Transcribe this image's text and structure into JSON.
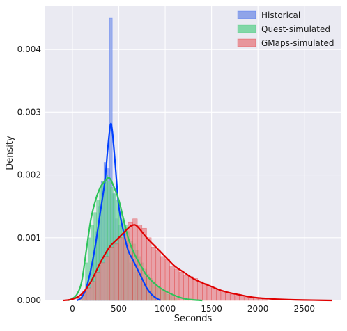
{
  "chart_data": {
    "type": "bar",
    "title": "",
    "xlabel": "Seconds",
    "ylabel": "Density",
    "xlim": [
      -300,
      2900
    ],
    "ylim": [
      0,
      0.0047
    ],
    "x_ticks": [
      "0",
      "500",
      "1000",
      "1500",
      "2000",
      "2500"
    ],
    "x_tick_values": [
      0,
      500,
      1000,
      1500,
      2000,
      2500
    ],
    "y_ticks": [
      "0.000",
      "0.001",
      "0.002",
      "0.003",
      "0.004"
    ],
    "y_tick_values": [
      0,
      0.001,
      0.002,
      0.003,
      0.004
    ],
    "grid": true,
    "legend_position": "top-right",
    "background": "#eaeaf2",
    "series": [
      {
        "name": "Historical",
        "kind": "histogram+kde",
        "color": "#0040ff",
        "fill": "#7f98e8",
        "bins": [
          [
            100,
            130,
            3e-05
          ],
          [
            130,
            160,
            0.0001
          ],
          [
            160,
            190,
            0.0003
          ],
          [
            190,
            220,
            0.00055
          ],
          [
            220,
            250,
            0.0008
          ],
          [
            250,
            280,
            0.0011
          ],
          [
            280,
            310,
            0.0015
          ],
          [
            310,
            340,
            0.0019
          ],
          [
            340,
            370,
            0.0022
          ],
          [
            370,
            400,
            0.0021
          ],
          [
            400,
            430,
            0.0045
          ],
          [
            430,
            460,
            0.0017
          ],
          [
            460,
            490,
            0.0013
          ],
          [
            490,
            520,
            0.0012
          ],
          [
            520,
            550,
            0.001
          ],
          [
            550,
            580,
            0.0009
          ],
          [
            580,
            610,
            0.0008
          ],
          [
            610,
            640,
            0.0006
          ],
          [
            640,
            670,
            0.0005
          ],
          [
            670,
            700,
            0.00045
          ],
          [
            700,
            730,
            0.0004
          ],
          [
            730,
            760,
            0.0003
          ],
          [
            760,
            790,
            0.00025
          ],
          [
            790,
            820,
            0.0002
          ],
          [
            820,
            850,
            0.00015
          ],
          [
            850,
            880,
            0.0001
          ],
          [
            880,
            910,
            5e-05
          ]
        ],
        "kde": [
          [
            50,
            0.0
          ],
          [
            100,
            5e-05
          ],
          [
            150,
            0.0002
          ],
          [
            200,
            0.0005
          ],
          [
            250,
            0.0009
          ],
          [
            300,
            0.0014
          ],
          [
            350,
            0.0019
          ],
          [
            380,
            0.0024
          ],
          [
            410,
            0.0028
          ],
          [
            430,
            0.0027
          ],
          [
            460,
            0.0022
          ],
          [
            500,
            0.0015
          ],
          [
            550,
            0.0011
          ],
          [
            600,
            0.0008
          ],
          [
            650,
            0.00065
          ],
          [
            700,
            0.0005
          ],
          [
            750,
            0.00035
          ],
          [
            800,
            0.0002
          ],
          [
            850,
            0.0001
          ],
          [
            900,
            4e-05
          ],
          [
            950,
            0.0
          ]
        ]
      },
      {
        "name": "Quest-simulated",
        "kind": "histogram+kde",
        "color": "#2ec45a",
        "fill": "#6fd49a",
        "bins": [
          [
            80,
            110,
            5e-05
          ],
          [
            110,
            140,
            0.00015
          ],
          [
            140,
            170,
            0.0006
          ],
          [
            170,
            200,
            0.001
          ],
          [
            200,
            230,
            0.0012
          ],
          [
            230,
            260,
            0.0014
          ],
          [
            260,
            290,
            0.0016
          ],
          [
            290,
            320,
            0.0018
          ],
          [
            320,
            350,
            0.0019
          ],
          [
            350,
            380,
            0.002
          ],
          [
            380,
            410,
            0.0019
          ],
          [
            410,
            440,
            0.0018
          ],
          [
            440,
            470,
            0.0017
          ],
          [
            470,
            500,
            0.0016
          ],
          [
            500,
            530,
            0.0014
          ],
          [
            530,
            560,
            0.0013
          ],
          [
            560,
            590,
            0.0012
          ],
          [
            590,
            620,
            0.0011
          ],
          [
            620,
            650,
            0.00095
          ],
          [
            650,
            680,
            0.0009
          ],
          [
            680,
            710,
            0.0008
          ],
          [
            710,
            740,
            0.0007
          ],
          [
            740,
            770,
            0.0006
          ],
          [
            770,
            800,
            0.0005
          ],
          [
            800,
            830,
            0.00042
          ],
          [
            830,
            860,
            0.00035
          ],
          [
            860,
            890,
            0.0003
          ],
          [
            890,
            920,
            0.00025
          ],
          [
            920,
            950,
            0.0002
          ],
          [
            950,
            980,
            0.00017
          ],
          [
            980,
            1010,
            0.00014
          ],
          [
            1010,
            1040,
            0.0001
          ],
          [
            1040,
            1070,
            8e-05
          ],
          [
            1070,
            1100,
            6e-05
          ],
          [
            1100,
            1130,
            4e-05
          ]
        ],
        "kde": [
          [
            -50,
            0.0
          ],
          [
            0,
            3e-05
          ],
          [
            50,
            0.0001
          ],
          [
            100,
            0.0003
          ],
          [
            150,
            0.0008
          ],
          [
            200,
            0.0013
          ],
          [
            250,
            0.0016
          ],
          [
            300,
            0.0018
          ],
          [
            350,
            0.0019
          ],
          [
            400,
            0.00195
          ],
          [
            450,
            0.0018
          ],
          [
            500,
            0.0016
          ],
          [
            550,
            0.0013
          ],
          [
            600,
            0.001
          ],
          [
            650,
            0.0008
          ],
          [
            700,
            0.00065
          ],
          [
            750,
            0.00052
          ],
          [
            800,
            0.0004
          ],
          [
            900,
            0.00025
          ],
          [
            1000,
            0.00015
          ],
          [
            1100,
            8e-05
          ],
          [
            1200,
            3e-05
          ],
          [
            1300,
            1e-05
          ],
          [
            1400,
            0.0
          ]
        ]
      },
      {
        "name": "GMaps-simulated",
        "kind": "histogram+kde",
        "color": "#e00000",
        "fill": "#e8868c",
        "bins": [
          [
            50,
            100,
            5e-05
          ],
          [
            100,
            150,
            0.00015
          ],
          [
            150,
            200,
            0.0002
          ],
          [
            200,
            250,
            0.0003
          ],
          [
            250,
            300,
            0.00045
          ],
          [
            300,
            350,
            0.0006
          ],
          [
            350,
            400,
            0.0007
          ],
          [
            400,
            450,
            0.00085
          ],
          [
            450,
            500,
            0.0009
          ],
          [
            500,
            550,
            0.001
          ],
          [
            550,
            600,
            0.0011
          ],
          [
            600,
            650,
            0.00125
          ],
          [
            650,
            700,
            0.0013
          ],
          [
            700,
            750,
            0.0012
          ],
          [
            750,
            800,
            0.00115
          ],
          [
            800,
            850,
            0.001
          ],
          [
            850,
            900,
            0.00085
          ],
          [
            900,
            950,
            0.0008
          ],
          [
            950,
            1000,
            0.0007
          ],
          [
            1000,
            1050,
            0.00065
          ],
          [
            1050,
            1100,
            0.00055
          ],
          [
            1100,
            1150,
            0.0005
          ],
          [
            1150,
            1200,
            0.00045
          ],
          [
            1200,
            1250,
            0.0004
          ],
          [
            1250,
            1300,
            0.00038
          ],
          [
            1300,
            1350,
            0.00035
          ],
          [
            1350,
            1400,
            0.0003
          ],
          [
            1400,
            1450,
            0.00027
          ],
          [
            1450,
            1500,
            0.00023
          ],
          [
            1500,
            1550,
            0.0002
          ],
          [
            1550,
            1600,
            0.00018
          ],
          [
            1600,
            1650,
            0.00015
          ],
          [
            1650,
            1700,
            0.00012
          ],
          [
            1700,
            1750,
            0.0001
          ],
          [
            1750,
            1800,
            8e-05
          ],
          [
            1800,
            1850,
            7e-05
          ],
          [
            1850,
            1900,
            5e-05
          ],
          [
            1900,
            1950,
            4e-05
          ],
          [
            1950,
            2000,
            4e-05
          ],
          [
            2000,
            2050,
            3e-05
          ],
          [
            2050,
            2100,
            2e-05
          ]
        ],
        "kde": [
          [
            -100,
            0.0
          ],
          [
            0,
            2e-05
          ],
          [
            100,
            0.0001
          ],
          [
            200,
            0.0003
          ],
          [
            300,
            0.0006
          ],
          [
            400,
            0.00085
          ],
          [
            500,
            0.001
          ],
          [
            600,
            0.00115
          ],
          [
            650,
            0.0012
          ],
          [
            700,
            0.00118
          ],
          [
            800,
            0.001
          ],
          [
            900,
            0.00085
          ],
          [
            1000,
            0.0007
          ],
          [
            1100,
            0.00055
          ],
          [
            1200,
            0.00045
          ],
          [
            1300,
            0.00035
          ],
          [
            1400,
            0.00028
          ],
          [
            1500,
            0.00022
          ],
          [
            1600,
            0.00016
          ],
          [
            1700,
            0.00012
          ],
          [
            1800,
            9e-05
          ],
          [
            1900,
            6e-05
          ],
          [
            2000,
            4e-05
          ],
          [
            2100,
            3e-05
          ],
          [
            2200,
            2e-05
          ],
          [
            2400,
            1e-05
          ],
          [
            2600,
            5e-06
          ],
          [
            2800,
            0.0
          ]
        ]
      }
    ]
  }
}
